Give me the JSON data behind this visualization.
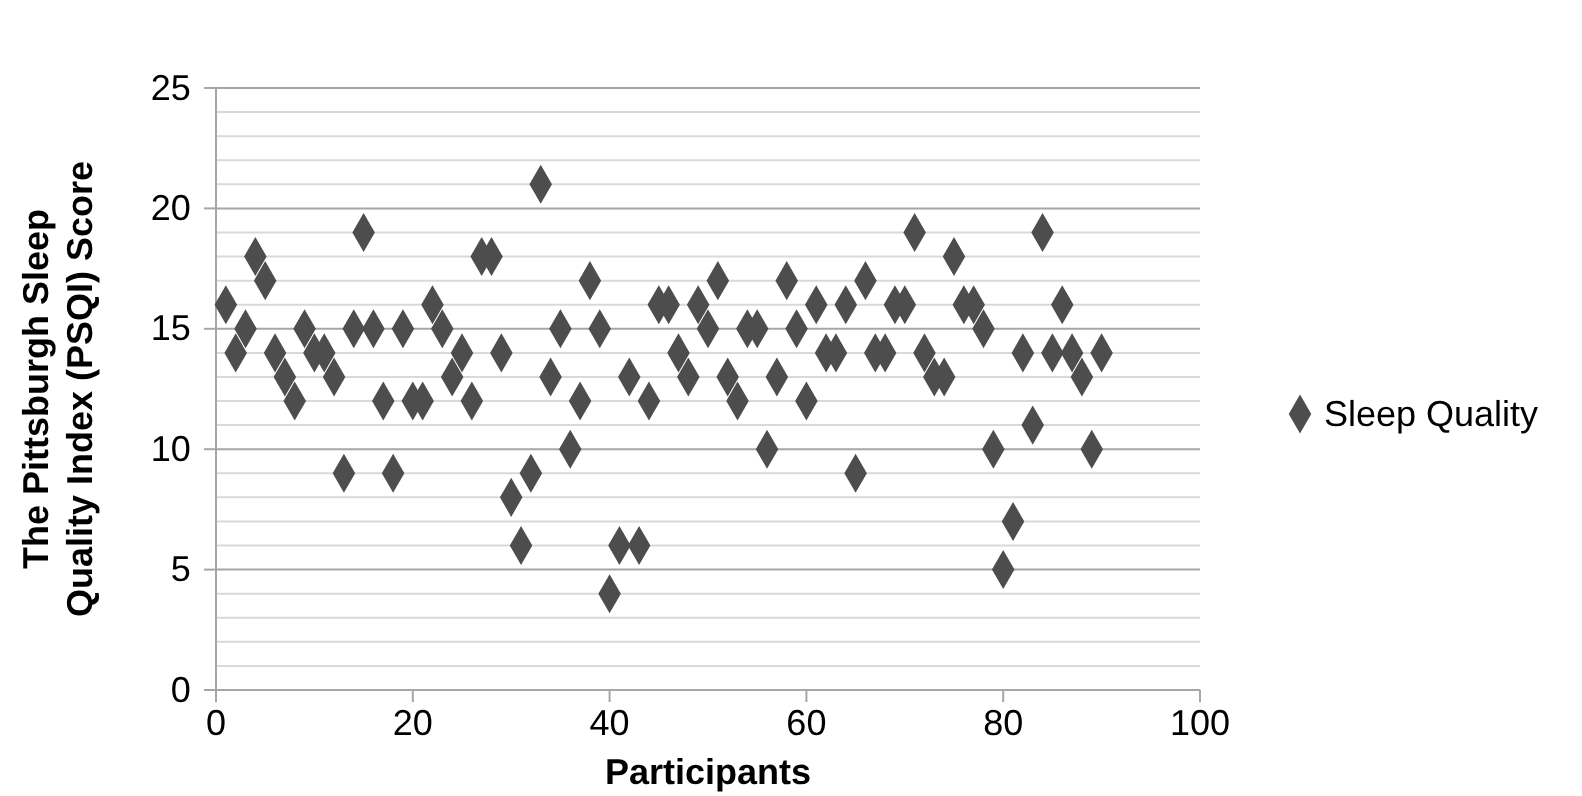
{
  "chart_data": {
    "type": "scatter",
    "xlabel": "Participants",
    "ylabel": "The Pittsburgh Sleep Quality Index (PSQI) Score",
    "xlim": [
      0,
      100
    ],
    "xticks": [
      0,
      20,
      40,
      60,
      80,
      100
    ],
    "ylim": [
      0,
      25
    ],
    "yticks": [
      0,
      5,
      10,
      15,
      20,
      25
    ],
    "grid": "y",
    "legend": "right",
    "marker": "diamond",
    "series": [
      {
        "name": "Sleep Quality",
        "color": "#4d4d4d",
        "x": [
          1,
          2,
          3,
          4,
          5,
          6,
          7,
          8,
          9,
          10,
          11,
          12,
          13,
          14,
          15,
          16,
          17,
          18,
          19,
          20,
          21,
          22,
          23,
          24,
          25,
          26,
          27,
          28,
          29,
          30,
          31,
          32,
          33,
          34,
          35,
          36,
          37,
          38,
          39,
          40,
          41,
          42,
          43,
          44,
          45,
          46,
          47,
          48,
          49,
          50,
          51,
          52,
          53,
          54,
          55,
          56,
          57,
          58,
          59,
          60,
          61,
          62,
          63,
          64,
          65,
          66,
          67,
          68,
          69,
          70,
          71,
          72,
          73,
          74,
          75,
          76,
          77,
          78,
          79,
          80,
          81,
          82,
          83,
          84,
          85,
          86,
          87,
          88,
          89,
          90
        ],
        "values": [
          16,
          14,
          15,
          18,
          17,
          14,
          13,
          12,
          15,
          14,
          14,
          13,
          9,
          15,
          19,
          15,
          12,
          9,
          15,
          12,
          12,
          16,
          15,
          13,
          14,
          12,
          18,
          18,
          14,
          8,
          6,
          9,
          21,
          13,
          15,
          10,
          12,
          17,
          15,
          4,
          6,
          13,
          6,
          12,
          16,
          16,
          14,
          13,
          16,
          15,
          17,
          13,
          12,
          15,
          15,
          10,
          13,
          17,
          15,
          12,
          16,
          14,
          14,
          16,
          9,
          17,
          14,
          14,
          16,
          16,
          19,
          14,
          13,
          13,
          18,
          16,
          16,
          15,
          10,
          5,
          7,
          14,
          11,
          19,
          14,
          16,
          14,
          13,
          10,
          14
        ]
      }
    ]
  }
}
